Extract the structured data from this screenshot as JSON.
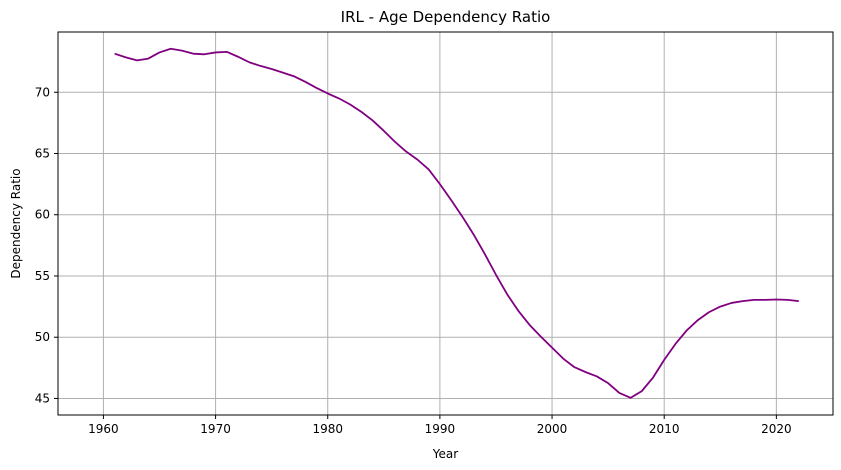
{
  "chart_data": {
    "type": "line",
    "title": "IRL - Age Dependency Ratio",
    "xlabel": "Year",
    "ylabel": "Dependency Ratio",
    "xlim": [
      1955.95,
      2025.05
    ],
    "ylim": [
      43.65,
      74.92
    ],
    "xticks": [
      1960,
      1970,
      1980,
      1990,
      2000,
      2010,
      2020
    ],
    "yticks": [
      45,
      50,
      55,
      60,
      65,
      70
    ],
    "grid": true,
    "series": [
      {
        "color": "#800080",
        "x": [
          1961,
          1962,
          1963,
          1964,
          1965,
          1966,
          1967,
          1968,
          1969,
          1970,
          1971,
          1972,
          1973,
          1974,
          1975,
          1976,
          1977,
          1978,
          1979,
          1980,
          1981,
          1982,
          1983,
          1984,
          1985,
          1986,
          1987,
          1988,
          1989,
          1990,
          1991,
          1992,
          1993,
          1994,
          1995,
          1996,
          1997,
          1998,
          1999,
          2000,
          2001,
          2002,
          2003,
          2004,
          2005,
          2006,
          2007,
          2008,
          2009,
          2010,
          2011,
          2012,
          2013,
          2014,
          2015,
          2016,
          2017,
          2018,
          2019,
          2020,
          2021,
          2022
        ],
        "values": [
          73.15,
          72.85,
          72.6,
          72.75,
          73.25,
          73.55,
          73.4,
          73.15,
          73.1,
          73.25,
          73.3,
          72.9,
          72.45,
          72.15,
          71.9,
          71.6,
          71.3,
          70.85,
          70.35,
          69.9,
          69.5,
          69.0,
          68.4,
          67.7,
          66.85,
          65.95,
          65.15,
          64.5,
          63.7,
          62.5,
          61.2,
          59.85,
          58.4,
          56.8,
          55.1,
          53.5,
          52.15,
          51.0,
          50.05,
          49.15,
          48.25,
          47.55,
          47.15,
          46.8,
          46.25,
          45.45,
          45.05,
          45.6,
          46.7,
          48.15,
          49.45,
          50.55,
          51.4,
          52.05,
          52.5,
          52.8,
          52.95,
          53.05,
          53.05,
          53.08,
          53.05,
          52.95
        ]
      }
    ]
  }
}
